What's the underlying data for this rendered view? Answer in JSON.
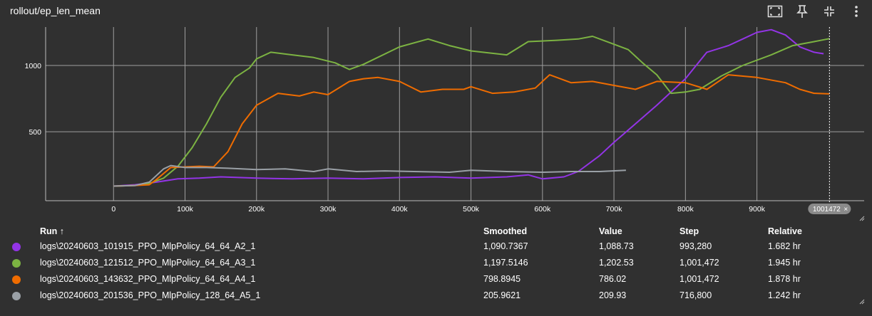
{
  "title": "rollout/ep_len_mean",
  "toolbar": {
    "icons": [
      "fit-domain-icon",
      "pin-icon",
      "collapse-icon",
      "more-vert-icon"
    ]
  },
  "chart_data": {
    "type": "line",
    "title": "rollout/ep_len_mean",
    "xlabel": "",
    "ylabel": "",
    "xlim": [
      -95000,
      1050000
    ],
    "ylim": [
      -20,
      1290
    ],
    "x_ticks": [
      0,
      100000,
      200000,
      300000,
      400000,
      500000,
      600000,
      700000,
      800000,
      900000
    ],
    "x_tick_labels": [
      "0",
      "100k",
      "200k",
      "300k",
      "400k",
      "500k",
      "600k",
      "700k",
      "800k",
      "900k"
    ],
    "y_ticks": [
      500,
      1000
    ],
    "y_tick_labels": [
      "500",
      "1000"
    ],
    "grid": true,
    "cursor_step": 1001472,
    "cursor_label": "1001472",
    "series": [
      {
        "name": "logs\\20240603_101915_PPO_MlpPolicy_64_64_A2_1",
        "color": "#9334e6",
        "x": [
          0,
          30000,
          60000,
          90000,
          120000,
          150000,
          200000,
          250000,
          300000,
          350000,
          400000,
          450000,
          500000,
          550000,
          580000,
          600000,
          630000,
          650000,
          680000,
          700000,
          730000,
          760000,
          800000,
          830000,
          860000,
          880000,
          900000,
          920000,
          940000,
          960000,
          980000,
          993280
        ],
        "y": [
          90,
          100,
          120,
          145,
          150,
          160,
          150,
          145,
          150,
          145,
          155,
          160,
          150,
          160,
          175,
          145,
          160,
          200,
          320,
          420,
          560,
          700,
          900,
          1100,
          1150,
          1200,
          1250,
          1270,
          1230,
          1140,
          1100,
          1088.73
        ]
      },
      {
        "name": "logs\\20240603_121512_PPO_MlpPolicy_64_64_A3_1",
        "color": "#7cb342",
        "x": [
          0,
          30000,
          50000,
          70000,
          90000,
          110000,
          130000,
          150000,
          170000,
          190000,
          200000,
          220000,
          250000,
          280000,
          310000,
          330000,
          350000,
          400000,
          440000,
          470000,
          500000,
          550000,
          580000,
          620000,
          650000,
          670000,
          700000,
          720000,
          740000,
          760000,
          780000,
          800000,
          820000,
          850000,
          880000,
          920000,
          950000,
          980000,
          1001472
        ],
        "y": [
          90,
          95,
          110,
          150,
          240,
          380,
          560,
          760,
          910,
          980,
          1050,
          1100,
          1080,
          1060,
          1020,
          970,
          1010,
          1140,
          1200,
          1150,
          1110,
          1080,
          1180,
          1190,
          1200,
          1220,
          1160,
          1120,
          1020,
          930,
          790,
          800,
          820,
          920,
          1000,
          1080,
          1150,
          1180,
          1202.53
        ]
      },
      {
        "name": "logs\\20240603_143632_PPO_MlpPolicy_64_64_A4_1",
        "color": "#ef6c00",
        "x": [
          0,
          30000,
          50000,
          60000,
          80000,
          100000,
          120000,
          140000,
          160000,
          180000,
          200000,
          230000,
          260000,
          280000,
          300000,
          330000,
          350000,
          370000,
          400000,
          430000,
          460000,
          490000,
          500000,
          530000,
          560000,
          590000,
          610000,
          640000,
          670000,
          700000,
          730000,
          760000,
          800000,
          830000,
          860000,
          900000,
          940000,
          960000,
          980000,
          1001472
        ],
        "y": [
          90,
          95,
          100,
          140,
          230,
          235,
          240,
          235,
          350,
          560,
          700,
          790,
          770,
          800,
          780,
          880,
          900,
          910,
          880,
          800,
          820,
          820,
          840,
          790,
          800,
          830,
          930,
          870,
          880,
          850,
          820,
          880,
          870,
          820,
          930,
          910,
          870,
          820,
          790,
          786.02
        ]
      },
      {
        "name": "logs\\20240603_201536_PPO_MlpPolicy_128_64_A5_1",
        "color": "#9aa0a6",
        "x": [
          0,
          30000,
          50000,
          70000,
          80000,
          100000,
          130000,
          160000,
          200000,
          240000,
          280000,
          300000,
          340000,
          380000,
          420000,
          470000,
          500000,
          550000,
          600000,
          640000,
          680000,
          716800
        ],
        "y": [
          90,
          95,
          120,
          220,
          245,
          230,
          230,
          225,
          215,
          220,
          200,
          220,
          200,
          205,
          200,
          195,
          210,
          200,
          195,
          200,
          200,
          209.93
        ]
      }
    ]
  },
  "legend": {
    "headers": {
      "run": "Run ↑",
      "smoothed": "Smoothed",
      "value": "Value",
      "step": "Step",
      "relative": "Relative"
    },
    "rows": [
      {
        "color": "#9334e6",
        "run": "logs\\20240603_101915_PPO_MlpPolicy_64_64_A2_1",
        "smoothed": "1,090.7367",
        "value": "1,088.73",
        "step": "993,280",
        "relative": "1.682 hr"
      },
      {
        "color": "#7cb342",
        "run": "logs\\20240603_121512_PPO_MlpPolicy_64_64_A3_1",
        "smoothed": "1,197.5146",
        "value": "1,202.53",
        "step": "1,001,472",
        "relative": "1.945 hr"
      },
      {
        "color": "#ef6c00",
        "run": "logs\\20240603_143632_PPO_MlpPolicy_64_64_A4_1",
        "smoothed": "798.8945",
        "value": "786.02",
        "step": "1,001,472",
        "relative": "1.878 hr"
      },
      {
        "color": "#9aa0a6",
        "run": "logs\\20240603_201536_PPO_MlpPolicy_128_64_A5_1",
        "smoothed": "205.9621",
        "value": "209.93",
        "step": "716,800",
        "relative": "1.242 hr"
      }
    ]
  }
}
